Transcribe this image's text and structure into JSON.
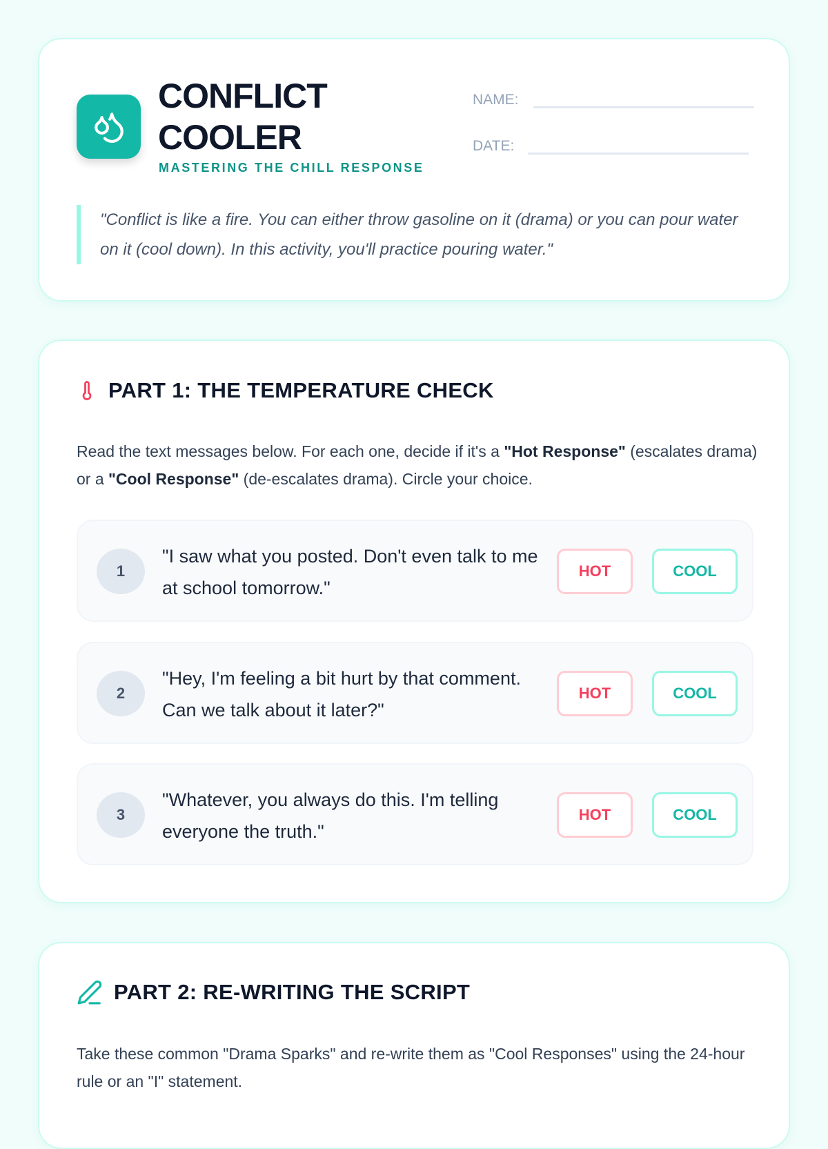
{
  "header": {
    "title_line1": "CONFLICT",
    "title_line2": "COOLER",
    "subtitle": "MASTERING THE CHILL RESPONSE",
    "name_label": "NAME:",
    "date_label": "DATE:",
    "quote": "\"Conflict is like a fire. You can either throw gasoline on it (drama) or you can pour water on it (cool down). In this activity, you'll practice pouring water.\""
  },
  "part1": {
    "title": "PART 1: THE TEMPERATURE CHECK",
    "intro_a": "Read the text messages below. For each one, decide if it's a ",
    "hot_term": "\"Hot Response\"",
    "intro_b": " (escalates drama) or a ",
    "cool_term": "\"Cool Response\"",
    "intro_c": " (de-escalates drama). Circle your choice.",
    "hot_label": "HOT",
    "cool_label": "COOL",
    "items": [
      {
        "num": "1",
        "text": "\"I saw what you posted. Don't even talk to me at school tomorrow.\""
      },
      {
        "num": "2",
        "text": "\"Hey, I'm feeling a bit hurt by that comment. Can we talk about it later?\""
      },
      {
        "num": "3",
        "text": "\"Whatever, you always do this. I'm telling everyone the truth.\""
      }
    ]
  },
  "part2": {
    "title": "PART 2: RE-WRITING THE SCRIPT",
    "intro": "Take these common \"Drama Sparks\" and re-write them as \"Cool Responses\" using the 24-hour rule or an \"I\" statement."
  },
  "colors": {
    "accent": "#14b8a6",
    "hot": "#f43f5e",
    "dark": "#0f172a"
  }
}
